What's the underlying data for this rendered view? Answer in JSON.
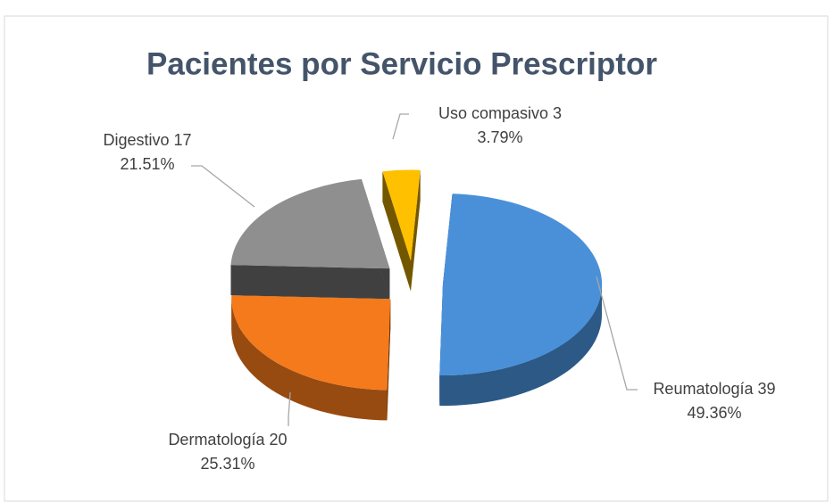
{
  "chart_data": {
    "type": "pie",
    "title": "Pacientes por Servicio Prescriptor",
    "categories": [
      "Reumatología",
      "Dermatología",
      "Digestivo",
      "Uso compasivo"
    ],
    "values": [
      39,
      20,
      17,
      3
    ],
    "percentages": [
      49.36,
      25.31,
      21.51,
      3.79
    ],
    "percentage_labels": [
      "49.36%",
      "25.31%",
      "21.51%",
      "3.79%"
    ],
    "colors": [
      "#4a90d9",
      "#f47a1c",
      "#8f8f8f",
      "#ffc000"
    ],
    "exploded": true,
    "three_d": true
  }
}
